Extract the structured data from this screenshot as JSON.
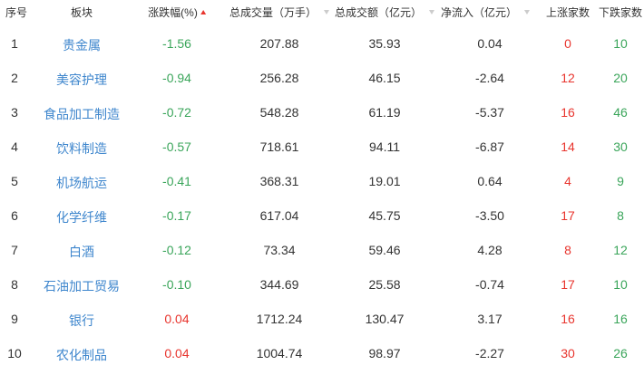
{
  "header": {
    "rank": "序号",
    "sector": "板块",
    "change": "涨跌幅(%)",
    "volume": "总成交量（万手）",
    "amount": "总成交额（亿元）",
    "netflow": "净流入（亿元）",
    "up": "上涨家数",
    "down": "下跌家数"
  },
  "colors": {
    "up": "#e8352e",
    "down": "#3aa55a",
    "link": "#3e86cd"
  },
  "rows": [
    {
      "rank": "1",
      "sector": "贵金属",
      "change": "-1.56",
      "volume": "207.88",
      "amount": "35.93",
      "netflow": "0.04",
      "up": "0",
      "down": "10"
    },
    {
      "rank": "2",
      "sector": "美容护理",
      "change": "-0.94",
      "volume": "256.28",
      "amount": "46.15",
      "netflow": "-2.64",
      "up": "12",
      "down": "20"
    },
    {
      "rank": "3",
      "sector": "食品加工制造",
      "change": "-0.72",
      "volume": "548.28",
      "amount": "61.19",
      "netflow": "-5.37",
      "up": "16",
      "down": "46"
    },
    {
      "rank": "4",
      "sector": "饮料制造",
      "change": "-0.57",
      "volume": "718.61",
      "amount": "94.11",
      "netflow": "-6.87",
      "up": "14",
      "down": "30"
    },
    {
      "rank": "5",
      "sector": "机场航运",
      "change": "-0.41",
      "volume": "368.31",
      "amount": "19.01",
      "netflow": "0.64",
      "up": "4",
      "down": "9"
    },
    {
      "rank": "6",
      "sector": "化学纤维",
      "change": "-0.17",
      "volume": "617.04",
      "amount": "45.75",
      "netflow": "-3.50",
      "up": "17",
      "down": "8"
    },
    {
      "rank": "7",
      "sector": "白酒",
      "change": "-0.12",
      "volume": "73.34",
      "amount": "59.46",
      "netflow": "4.28",
      "up": "8",
      "down": "12"
    },
    {
      "rank": "8",
      "sector": "石油加工贸易",
      "change": "-0.10",
      "volume": "344.69",
      "amount": "25.58",
      "netflow": "-0.74",
      "up": "17",
      "down": "10"
    },
    {
      "rank": "9",
      "sector": "银行",
      "change": "0.04",
      "volume": "1712.24",
      "amount": "130.47",
      "netflow": "3.17",
      "up": "16",
      "down": "16"
    },
    {
      "rank": "10",
      "sector": "农化制品",
      "change": "0.04",
      "volume": "1004.74",
      "amount": "98.97",
      "netflow": "-2.27",
      "up": "30",
      "down": "26"
    }
  ]
}
